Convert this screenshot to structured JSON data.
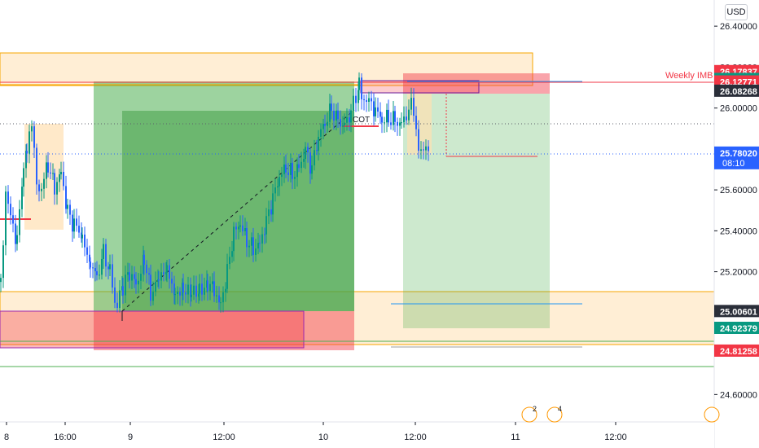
{
  "chart_data": {
    "type": "candlestick",
    "currency": "USD",
    "ylim": [
      24.47,
      26.5
    ],
    "y_ticks": [
      "26.40000",
      "26.20000",
      "26.00000",
      "25.60000",
      "25.40000",
      "25.20000",
      "24.60000"
    ],
    "x_ticks": [
      "8",
      "16:00",
      "9",
      "12:00",
      "10",
      "12:00",
      "11",
      "12:00"
    ],
    "price_tags": [
      {
        "value": "26.17837",
        "color": "#f23645"
      },
      {
        "value": "26.14009",
        "color": "#089981"
      },
      {
        "value": "26.12771",
        "color": "#f23645"
      },
      {
        "value": "26.08268",
        "color": "#2a2e39"
      },
      {
        "value": "25.78020",
        "color": "#2962ff",
        "sub": "08:10"
      },
      {
        "value": "25.00601",
        "color": "#2a2e39"
      },
      {
        "value": "24.92379",
        "color": "#089981"
      },
      {
        "value": "24.81258",
        "color": "#f23645"
      }
    ],
    "annotations": [
      {
        "text": "Weekly IMB",
        "color": "#f23645"
      },
      {
        "text": "COT",
        "color": "#131722"
      }
    ],
    "events": [
      {
        "label": "2"
      },
      {
        "label": "4"
      }
    ],
    "price_path": [
      [
        0,
        25.15
      ],
      [
        6,
        25.6
      ],
      [
        12,
        25.45
      ],
      [
        20,
        25.35
      ],
      [
        28,
        25.7
      ],
      [
        32,
        25.82
      ],
      [
        38,
        25.9
      ],
      [
        44,
        25.65
      ],
      [
        50,
        25.6
      ],
      [
        58,
        25.72
      ],
      [
        66,
        25.62
      ],
      [
        74,
        25.7
      ],
      [
        82,
        25.5
      ],
      [
        90,
        25.42
      ],
      [
        100,
        25.38
      ],
      [
        110,
        25.25
      ],
      [
        118,
        25.18
      ],
      [
        126,
        25.3
      ],
      [
        134,
        25.2
      ],
      [
        140,
        25.05
      ],
      [
        150,
        25.12
      ],
      [
        158,
        25.2
      ],
      [
        166,
        25.15
      ],
      [
        176,
        25.25
      ],
      [
        184,
        25.1
      ],
      [
        194,
        25.15
      ],
      [
        204,
        25.2
      ],
      [
        214,
        25.12
      ],
      [
        224,
        25.1
      ],
      [
        234,
        25.08
      ],
      [
        244,
        25.12
      ],
      [
        254,
        25.15
      ],
      [
        262,
        25.12
      ],
      [
        270,
        25.05
      ],
      [
        278,
        25.2
      ],
      [
        286,
        25.38
      ],
      [
        294,
        25.42
      ],
      [
        302,
        25.35
      ],
      [
        310,
        25.32
      ],
      [
        318,
        25.35
      ],
      [
        326,
        25.45
      ],
      [
        334,
        25.55
      ],
      [
        342,
        25.65
      ],
      [
        350,
        25.7
      ],
      [
        358,
        25.68
      ],
      [
        366,
        25.72
      ],
      [
        374,
        25.8
      ],
      [
        382,
        25.7
      ],
      [
        390,
        25.85
      ],
      [
        398,
        25.92
      ],
      [
        406,
        26.0
      ],
      [
        414,
        25.95
      ],
      [
        422,
        25.92
      ],
      [
        430,
        25.98
      ],
      [
        436,
        26.05
      ],
      [
        440,
        26.12
      ],
      [
        446,
        26.05
      ],
      [
        452,
        26.02
      ],
      [
        460,
        25.98
      ],
      [
        468,
        25.93
      ],
      [
        476,
        25.95
      ],
      [
        484,
        25.95
      ],
      [
        492,
        25.93
      ],
      [
        498,
        25.98
      ],
      [
        504,
        26.02
      ],
      [
        510,
        25.88
      ],
      [
        516,
        25.8
      ],
      [
        522,
        25.78
      ],
      [
        528,
        25.77
      ]
    ]
  }
}
